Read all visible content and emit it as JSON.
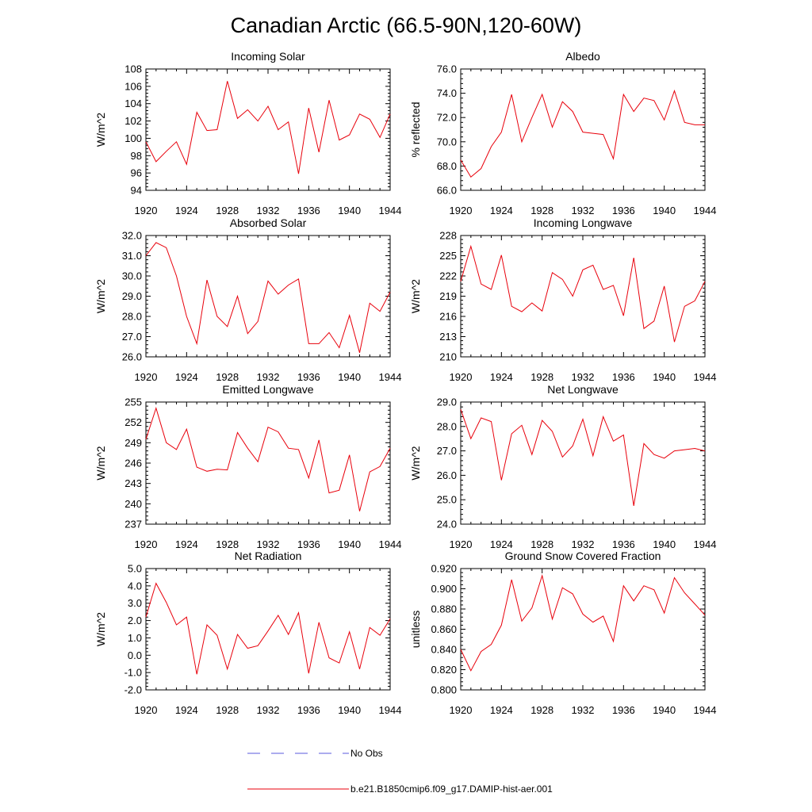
{
  "title": "Canadian Arctic (66.5-90N,120-60W)",
  "legend": {
    "no_obs_label": "No Obs",
    "no_obs_color": "#5a5adc",
    "model_label": "b.e21.B1850cmip6.f09_g17.DAMIP-hist-aer.001",
    "model_color": "#e8000b"
  },
  "chart_data": [
    {
      "type": "line",
      "title": "Incoming Solar",
      "ylabel": "W/m^2",
      "ylim": [
        94,
        108
      ],
      "yticks": [
        "94",
        "96",
        "98",
        "100",
        "102",
        "104",
        "106",
        "108"
      ],
      "xlim": [
        1920,
        1944
      ],
      "xticks": [
        "1920",
        "1924",
        "1928",
        "1932",
        "1936",
        "1940",
        "1944"
      ],
      "x": [
        1920,
        1921,
        1922,
        1923,
        1924,
        1925,
        1926,
        1927,
        1928,
        1929,
        1930,
        1931,
        1932,
        1933,
        1934,
        1935,
        1936,
        1937,
        1938,
        1939,
        1940,
        1941,
        1942,
        1943,
        1944
      ],
      "series": [
        {
          "name": "b.e21.B1850cmip6.f09_g17.DAMIP-hist-aer.001",
          "values": [
            99.6,
            97.3,
            98.5,
            99.6,
            97.0,
            103.0,
            100.9,
            101.0,
            106.6,
            102.3,
            103.3,
            102.0,
            103.7,
            101.0,
            101.9,
            95.9,
            103.5,
            98.4,
            104.4,
            99.8,
            100.4,
            102.8,
            102.2,
            100.1,
            102.8
          ]
        }
      ]
    },
    {
      "type": "line",
      "title": "Albedo",
      "ylabel": "% reflected",
      "ylim": [
        66,
        76
      ],
      "yticks": [
        "66.0",
        "68.0",
        "70.0",
        "72.0",
        "74.0",
        "76.0"
      ],
      "xlim": [
        1920,
        1944
      ],
      "xticks": [
        "1920",
        "1924",
        "1928",
        "1932",
        "1936",
        "1940",
        "1944"
      ],
      "x": [
        1920,
        1921,
        1922,
        1923,
        1924,
        1925,
        1926,
        1927,
        1928,
        1929,
        1930,
        1931,
        1932,
        1933,
        1934,
        1935,
        1936,
        1937,
        1938,
        1939,
        1940,
        1941,
        1942,
        1943,
        1944
      ],
      "series": [
        {
          "name": "b.e21.B1850cmip6.f09_g17.DAMIP-hist-aer.001",
          "values": [
            68.5,
            67.1,
            67.8,
            69.6,
            70.8,
            73.9,
            70.0,
            72.0,
            73.9,
            71.2,
            73.3,
            72.5,
            70.8,
            70.7,
            70.6,
            68.6,
            73.9,
            72.5,
            73.6,
            73.4,
            71.8,
            74.2,
            71.6,
            71.4,
            71.4
          ]
        }
      ]
    },
    {
      "type": "line",
      "title": "Absorbed Solar",
      "ylabel": "W/m^2",
      "ylim": [
        26,
        32
      ],
      "yticks": [
        "26.0",
        "27.0",
        "28.0",
        "29.0",
        "30.0",
        "31.0",
        "32.0"
      ],
      "xlim": [
        1920,
        1944
      ],
      "xticks": [
        "1920",
        "1924",
        "1928",
        "1932",
        "1936",
        "1940",
        "1944"
      ],
      "x": [
        1920,
        1921,
        1922,
        1923,
        1924,
        1925,
        1926,
        1927,
        1928,
        1929,
        1930,
        1931,
        1932,
        1933,
        1934,
        1935,
        1936,
        1937,
        1938,
        1939,
        1940,
        1941,
        1942,
        1943,
        1944
      ],
      "series": [
        {
          "name": "b.e21.B1850cmip6.f09_g17.DAMIP-hist-aer.001",
          "values": [
            31.0,
            31.65,
            31.4,
            30.0,
            28.0,
            26.65,
            29.8,
            28.0,
            27.5,
            29.0,
            27.15,
            27.75,
            29.75,
            29.1,
            29.55,
            29.85,
            26.65,
            26.65,
            27.2,
            26.45,
            28.05,
            26.2,
            28.65,
            28.25,
            29.2
          ]
        }
      ]
    },
    {
      "type": "line",
      "title": "Incoming Longwave",
      "ylabel": "W/m^2",
      "ylim": [
        210,
        228
      ],
      "yticks": [
        "210",
        "213",
        "216",
        "219",
        "222",
        "225",
        "228"
      ],
      "xlim": [
        1920,
        1944
      ],
      "xticks": [
        "1920",
        "1924",
        "1928",
        "1932",
        "1936",
        "1940",
        "1944"
      ],
      "x": [
        1920,
        1921,
        1922,
        1923,
        1924,
        1925,
        1926,
        1927,
        1928,
        1929,
        1930,
        1931,
        1932,
        1933,
        1934,
        1935,
        1936,
        1937,
        1938,
        1939,
        1940,
        1941,
        1942,
        1943,
        1944
      ],
      "series": [
        {
          "name": "b.e21.B1850cmip6.f09_g17.DAMIP-hist-aer.001",
          "values": [
            221.2,
            226.4,
            220.8,
            220.0,
            225.1,
            217.5,
            216.7,
            218.0,
            216.8,
            222.5,
            221.5,
            219.0,
            222.9,
            223.6,
            220.0,
            220.6,
            216.1,
            224.7,
            214.2,
            215.3,
            220.5,
            212.2,
            217.5,
            218.3,
            221.2
          ]
        }
      ]
    },
    {
      "type": "line",
      "title": "Emitted Longwave",
      "ylabel": "W/m^2",
      "ylim": [
        237,
        255
      ],
      "yticks": [
        "237",
        "240",
        "243",
        "246",
        "249",
        "252",
        "255"
      ],
      "xlim": [
        1920,
        1944
      ],
      "xticks": [
        "1920",
        "1924",
        "1928",
        "1932",
        "1936",
        "1940",
        "1944"
      ],
      "x": [
        1920,
        1921,
        1922,
        1923,
        1924,
        1925,
        1926,
        1927,
        1928,
        1929,
        1930,
        1931,
        1932,
        1933,
        1934,
        1935,
        1936,
        1937,
        1938,
        1939,
        1940,
        1941,
        1942,
        1943,
        1944
      ],
      "series": [
        {
          "name": "b.e21.B1850cmip6.f09_g17.DAMIP-hist-aer.001",
          "values": [
            249.5,
            254.1,
            249.0,
            248.0,
            251.0,
            245.4,
            244.8,
            245.1,
            245.0,
            250.5,
            248.2,
            246.2,
            251.3,
            250.6,
            248.2,
            248.0,
            243.8,
            249.4,
            241.6,
            242.0,
            247.2,
            238.9,
            244.7,
            245.5,
            248.2
          ]
        }
      ]
    },
    {
      "type": "line",
      "title": "Net Longwave",
      "ylabel": "W/m^2",
      "ylim": [
        24,
        29
      ],
      "yticks": [
        "24.0",
        "25.0",
        "26.0",
        "27.0",
        "28.0",
        "29.0"
      ],
      "xlim": [
        1920,
        1944
      ],
      "xticks": [
        "1920",
        "1924",
        "1928",
        "1932",
        "1936",
        "1940",
        "1944"
      ],
      "x": [
        1920,
        1921,
        1922,
        1923,
        1924,
        1925,
        1926,
        1927,
        1928,
        1929,
        1930,
        1931,
        1932,
        1933,
        1934,
        1935,
        1936,
        1937,
        1938,
        1939,
        1940,
        1941,
        1942,
        1943,
        1944
      ],
      "series": [
        {
          "name": "b.e21.B1850cmip6.f09_g17.DAMIP-hist-aer.001",
          "values": [
            28.7,
            27.5,
            28.35,
            28.2,
            25.8,
            27.7,
            28.05,
            26.85,
            28.25,
            27.8,
            26.75,
            27.2,
            28.3,
            26.8,
            28.4,
            27.4,
            27.65,
            24.75,
            27.3,
            26.85,
            26.7,
            27.0,
            27.05,
            27.1,
            27.0
          ]
        }
      ]
    },
    {
      "type": "line",
      "title": "Net Radiation",
      "ylabel": "W/m^2",
      "ylim": [
        -2,
        5
      ],
      "yticks": [
        "-2.0",
        "-1.0",
        "0.0",
        "1.0",
        "2.0",
        "3.0",
        "4.0",
        "5.0"
      ],
      "xlim": [
        1920,
        1944
      ],
      "xticks": [
        "1920",
        "1924",
        "1928",
        "1932",
        "1936",
        "1940",
        "1944"
      ],
      "x": [
        1920,
        1921,
        1922,
        1923,
        1924,
        1925,
        1926,
        1927,
        1928,
        1929,
        1930,
        1931,
        1932,
        1933,
        1934,
        1935,
        1936,
        1937,
        1938,
        1939,
        1940,
        1941,
        1942,
        1943,
        1944
      ],
      "series": [
        {
          "name": "b.e21.B1850cmip6.f09_g17.DAMIP-hist-aer.001",
          "values": [
            2.2,
            4.15,
            3.05,
            1.75,
            2.2,
            -1.1,
            1.75,
            1.15,
            -0.8,
            1.2,
            0.4,
            0.55,
            1.4,
            2.3,
            1.2,
            2.45,
            -1.05,
            1.9,
            -0.15,
            -0.45,
            1.35,
            -0.8,
            1.6,
            1.15,
            2.1
          ]
        }
      ]
    },
    {
      "type": "line",
      "title": "Ground Snow Covered Fraction",
      "ylabel": "unitless",
      "ylim": [
        0.8,
        0.92
      ],
      "yticks": [
        "0.800",
        "0.820",
        "0.840",
        "0.860",
        "0.880",
        "0.900",
        "0.920"
      ],
      "xlim": [
        1920,
        1944
      ],
      "xticks": [
        "1920",
        "1924",
        "1928",
        "1932",
        "1936",
        "1940",
        "1944"
      ],
      "x": [
        1920,
        1921,
        1922,
        1923,
        1924,
        1925,
        1926,
        1927,
        1928,
        1929,
        1930,
        1931,
        1932,
        1933,
        1934,
        1935,
        1936,
        1937,
        1938,
        1939,
        1940,
        1941,
        1942,
        1943,
        1944
      ],
      "series": [
        {
          "name": "b.e21.B1850cmip6.f09_g17.DAMIP-hist-aer.001",
          "values": [
            0.84,
            0.819,
            0.838,
            0.845,
            0.864,
            0.909,
            0.868,
            0.881,
            0.913,
            0.87,
            0.901,
            0.895,
            0.875,
            0.867,
            0.873,
            0.848,
            0.903,
            0.888,
            0.903,
            0.899,
            0.876,
            0.911,
            0.896,
            0.885,
            0.874
          ]
        }
      ]
    }
  ]
}
